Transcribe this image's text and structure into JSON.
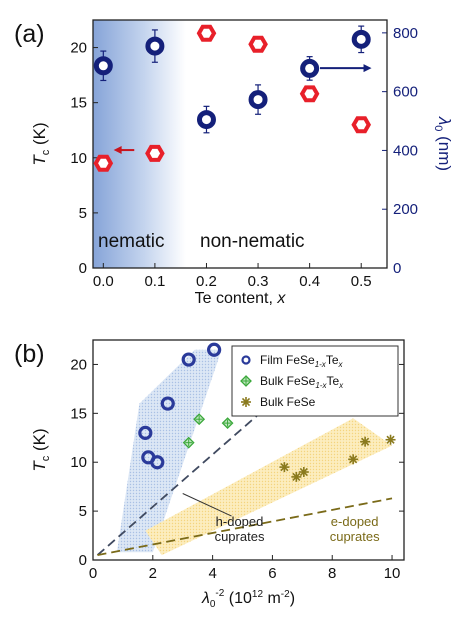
{
  "chart_data": [
    {
      "panel_label": "(a)",
      "type": "scatter",
      "xlabel_text": "Te content, ",
      "xlabel_var": "x",
      "ylabel_left_var": "T",
      "ylabel_left_sub": "c",
      "ylabel_left_unit": " (K)",
      "ylabel_right_var": "λ",
      "ylabel_right_sub": "0",
      "ylabel_right_unit": " (nm)",
      "xlim": [
        -0.02,
        0.55
      ],
      "ylim_left": [
        0,
        22.5
      ],
      "ylim_right": [
        0,
        843.75
      ],
      "xticks": [
        0.0,
        0.1,
        0.2,
        0.3,
        0.4,
        0.5
      ],
      "xtick_labels": [
        "0.0",
        "0.1",
        "0.2",
        "0.3",
        "0.4",
        "0.5"
      ],
      "yticks_left": [
        0,
        5,
        10,
        15,
        20
      ],
      "yticks_right": [
        0,
        200,
        400,
        600,
        800
      ],
      "region_labels": {
        "left": "nematic",
        "right": "non-nematic"
      },
      "shaded_region_x": [
        -0.02,
        0.16
      ],
      "series": [
        {
          "axis": "left",
          "marker": "hexagon",
          "color": "#e8202a",
          "x": [
            0.0,
            0.1,
            0.2,
            0.3,
            0.4,
            0.5
          ],
          "y": [
            9.5,
            10.4,
            21.3,
            20.3,
            15.8,
            13.0
          ]
        },
        {
          "axis": "right",
          "marker": "circle",
          "color": "#14207a",
          "x": [
            0.0,
            0.1,
            0.2,
            0.3,
            0.4,
            0.5
          ],
          "y": [
            688,
            755,
            505,
            573,
            679,
            778
          ],
          "err": [
            50,
            55,
            45,
            50,
            40,
            45
          ]
        }
      ],
      "arrows": [
        {
          "color": "#c8141e",
          "from": [
            0.06,
            10.7
          ],
          "to": [
            0.02,
            10.7
          ]
        },
        {
          "color": "#14207a",
          "from": [
            0.42,
            680
          ],
          "to": [
            0.52,
            680
          ]
        }
      ]
    },
    {
      "panel_label": "(b)",
      "type": "scatter",
      "xlabel_var": "λ",
      "xlabel_sub": "0",
      "xlabel_sup": "-2",
      "xlabel_unit": " (10",
      "xlabel_unit_sup": "12",
      "xlabel_unit_end": " m",
      "xlabel_unit_sup2": "-2",
      "xlabel_close": ")",
      "ylabel_var": "T",
      "ylabel_sub": "c",
      "ylabel_unit": " (K)",
      "xlim": [
        0,
        10.4
      ],
      "ylim": [
        0,
        22.5
      ],
      "xticks": [
        0,
        2,
        4,
        6,
        8,
        10
      ],
      "yticks": [
        0,
        5,
        10,
        15,
        20
      ],
      "series": [
        {
          "legend_prefix": "Film FeSe",
          "legend_sub": "1-x",
          "legend_mid": "Te",
          "legend_sub2": "x",
          "marker": "open-circle",
          "color": "#2a3a9a",
          "x": [
            1.75,
            1.85,
            2.15,
            2.5,
            3.2,
            4.05
          ],
          "y": [
            13.0,
            10.5,
            10.0,
            16.0,
            20.5,
            21.5
          ]
        },
        {
          "legend_prefix": "Bulk FeSe",
          "legend_sub": "1-x",
          "legend_mid": "Te",
          "legend_sub2": "x",
          "marker": "diamond",
          "color": "#3aa83a",
          "x": [
            3.2,
            3.55,
            4.5
          ],
          "y": [
            12.0,
            14.4,
            14.0
          ]
        },
        {
          "legend_prefix": "Bulk FeSe",
          "marker": "asterisk",
          "color": "#8a7a1e",
          "x": [
            6.4,
            6.8,
            7.05,
            8.7,
            9.1,
            9.95
          ],
          "y": [
            9.5,
            8.5,
            9.0,
            10.3,
            12.1,
            12.3
          ]
        }
      ],
      "lines": [
        {
          "style": "dashed",
          "color": "#404a60",
          "x": [
            0.15,
            5.8
          ],
          "y": [
            0.5,
            15.6
          ]
        },
        {
          "style": "dashed",
          "color": "#7a6a18",
          "x": [
            0.15,
            10.0
          ],
          "y": [
            0.5,
            6.3
          ]
        }
      ],
      "bands": [
        {
          "color": "#c2d6ec",
          "points": [
            [
              0.8,
              0.8
            ],
            [
              2.0,
              0.8
            ],
            [
              4.3,
              21.5
            ],
            [
              3.4,
              21.5
            ],
            [
              1.55,
              16.0
            ]
          ]
        },
        {
          "color": "#fbe6a6",
          "points": [
            [
              1.75,
              3.0
            ],
            [
              8.7,
              14.5
            ],
            [
              10.0,
              11.7
            ],
            [
              2.3,
              0.5
            ]
          ]
        }
      ],
      "annotations": [
        {
          "lines": [
            "h-doped",
            "cuprates"
          ],
          "color": "#222222",
          "x": 4.9,
          "y": 2.45,
          "pointer_to": [
            3.0,
            6.8
          ]
        },
        {
          "lines": [
            "e-doped",
            "cuprates"
          ],
          "color": "#7a6a18",
          "x": 8.75,
          "y": 2.45
        }
      ]
    }
  ]
}
